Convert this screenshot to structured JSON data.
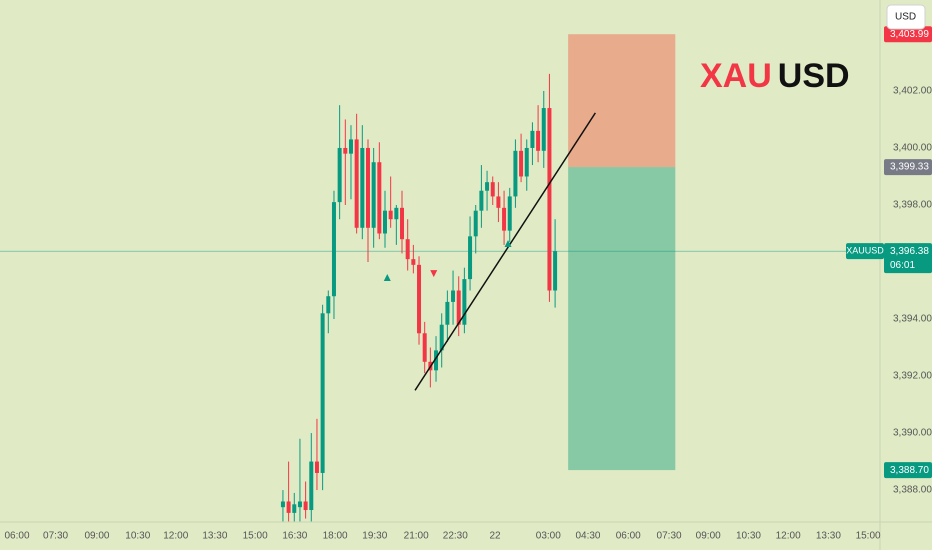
{
  "chart_data": {
    "type": "candlestick",
    "title_parts": [
      {
        "text": "XAU",
        "color": "#f23645"
      },
      {
        "text": "USD",
        "color": "#111111"
      }
    ],
    "currency": "USD",
    "symbol": "XAUUSD",
    "last_price": {
      "value": 3396.38,
      "label": "3,396.38"
    },
    "countdown": "06:01",
    "up_color": "#089981",
    "down_color": "#f23645",
    "x": [
      39,
      40,
      41,
      42,
      43,
      44,
      45,
      46,
      47,
      48,
      49,
      50,
      51,
      52,
      53,
      54,
      55,
      56,
      57,
      58,
      59,
      60,
      61,
      62,
      63,
      64,
      65,
      66,
      67,
      68,
      69,
      70,
      71,
      72,
      73,
      74,
      75,
      76,
      77,
      78,
      79,
      80,
      81,
      82,
      83,
      84,
      85,
      86,
      87
    ],
    "open": [
      3387.4,
      3387.6,
      3387.2,
      3387.4,
      3387.6,
      3387.3,
      3389.0,
      3388.6,
      3394.2,
      3394.8,
      3398.1,
      3400.0,
      3399.8,
      3400.3,
      3397.2,
      3400.0,
      3397.2,
      3399.5,
      3397.0,
      3397.8,
      3397.5,
      3397.9,
      3396.8,
      3396.1,
      3395.9,
      3393.5,
      3392.5,
      3392.2,
      3392.9,
      3393.8,
      3394.6,
      3395.0,
      3393.8,
      3395.4,
      3396.9,
      3397.8,
      3398.5,
      3398.8,
      3398.3,
      3397.9,
      3397.1,
      3398.3,
      3399.9,
      3399.0,
      3400.0,
      3400.6,
      3399.9,
      3401.4,
      3395.0
    ],
    "high": [
      3388.0,
      3389.0,
      3387.9,
      3389.8,
      3388.3,
      3390.0,
      3390.5,
      3394.5,
      3395.0,
      3398.5,
      3401.5,
      3401.0,
      3400.8,
      3401.2,
      3400.8,
      3400.3,
      3400.0,
      3400.2,
      3398.5,
      3399.0,
      3398.0,
      3398.5,
      3397.5,
      3396.6,
      3396.2,
      3393.9,
      3393.0,
      3393.4,
      3394.2,
      3395.0,
      3395.7,
      3395.5,
      3395.8,
      3397.6,
      3398.0,
      3399.4,
      3399.2,
      3399.0,
      3398.8,
      3398.5,
      3398.6,
      3400.3,
      3400.5,
      3400.3,
      3400.9,
      3401.5,
      3402.0,
      3402.6,
      3397.5
    ],
    "low": [
      3386.9,
      3386.9,
      3386.9,
      3386.9,
      3387.0,
      3386.9,
      3388.0,
      3388.0,
      3393.5,
      3394.0,
      3397.5,
      3398.0,
      3398.2,
      3397.0,
      3396.8,
      3396.0,
      3396.5,
      3396.8,
      3396.5,
      3397.2,
      3396.6,
      3396.3,
      3395.7,
      3395.6,
      3393.1,
      3392.1,
      3391.6,
      3391.8,
      3392.3,
      3393.2,
      3393.8,
      3393.4,
      3393.5,
      3395.0,
      3396.3,
      3397.2,
      3397.8,
      3398.0,
      3397.4,
      3396.6,
      3396.7,
      3397.9,
      3398.8,
      3398.5,
      3399.4,
      3399.5,
      3399.3,
      3394.6,
      3394.4
    ],
    "close": [
      3387.6,
      3387.2,
      3387.5,
      3387.6,
      3387.3,
      3389.0,
      3388.6,
      3394.2,
      3394.8,
      3398.1,
      3400.0,
      3399.8,
      3400.3,
      3397.2,
      3400.0,
      3397.2,
      3399.5,
      3397.0,
      3397.8,
      3397.5,
      3397.9,
      3396.8,
      3396.1,
      3395.9,
      3393.5,
      3392.5,
      3392.2,
      3392.9,
      3393.8,
      3394.6,
      3395.0,
      3393.8,
      3395.4,
      3396.9,
      3397.8,
      3398.5,
      3398.8,
      3398.3,
      3397.9,
      3397.1,
      3398.3,
      3399.9,
      3399.0,
      3400.0,
      3400.6,
      3399.9,
      3401.4,
      3395.0,
      3396.38
    ],
    "xlim": [
      -10.9,
      144.3
    ],
    "ylim": [
      3386.88,
      3405.19
    ],
    "yticks": [
      {
        "value": 3388,
        "label": "3,388.00"
      },
      {
        "value": 3390,
        "label": "3,390.00"
      },
      {
        "value": 3392,
        "label": "3,392.00"
      },
      {
        "value": 3394,
        "label": "3,394.00"
      },
      {
        "value": 3396,
        "label": "3,396.00"
      },
      {
        "value": 3398,
        "label": "3,398.00"
      },
      {
        "value": 3400,
        "label": "3,400.00"
      },
      {
        "value": 3402,
        "label": "3,402.00"
      }
    ],
    "xticks": [
      {
        "value": -7.9,
        "label": "06:00"
      },
      {
        "value": -1.1,
        "label": "07:30"
      },
      {
        "value": 6.2,
        "label": "09:00"
      },
      {
        "value": 13.4,
        "label": "10:30"
      },
      {
        "value": 20.1,
        "label": "12:00"
      },
      {
        "value": 27.0,
        "label": "13:30"
      },
      {
        "value": 34.1,
        "label": "15:00"
      },
      {
        "value": 41.1,
        "label": "16:30"
      },
      {
        "value": 48.2,
        "label": "18:00"
      },
      {
        "value": 55.2,
        "label": "19:30"
      },
      {
        "value": 62.5,
        "label": "21:00"
      },
      {
        "value": 69.4,
        "label": "22:30"
      },
      {
        "value": 76.4,
        "label": "22"
      },
      {
        "value": 85.8,
        "label": "03:00"
      },
      {
        "value": 92.8,
        "label": "04:30"
      },
      {
        "value": 99.9,
        "label": "06:00"
      },
      {
        "value": 107.1,
        "label": "07:30"
      },
      {
        "value": 114.0,
        "label": "09:00"
      },
      {
        "value": 121.1,
        "label": "10:30"
      },
      {
        "value": 128.1,
        "label": "12:00"
      },
      {
        "value": 135.2,
        "label": "13:30"
      },
      {
        "value": 142.2,
        "label": "15:00"
      }
    ],
    "position": {
      "stop": {
        "value": 3403.99,
        "label": "3,403.99"
      },
      "entry": {
        "value": 3399.33,
        "label": "3,399.33"
      },
      "target": {
        "value": 3388.7,
        "label": "3,388.70"
      },
      "x_start": 89.3,
      "x_end": 108.2,
      "stop_color": "#e8ab8c",
      "target_color": "#86c9a4",
      "entry_tag_color": "#787b86"
    },
    "trendline": {
      "x": [
        62.3,
        94.1
      ],
      "y": [
        3391.5,
        3401.23
      ]
    },
    "markers": [
      {
        "x": 57.4,
        "y": 3395.44,
        "dir": "up"
      },
      {
        "x": 65.6,
        "y": 3395.61,
        "dir": "down"
      },
      {
        "x": 78.7,
        "y": 3396.63,
        "dir": "up"
      }
    ]
  }
}
